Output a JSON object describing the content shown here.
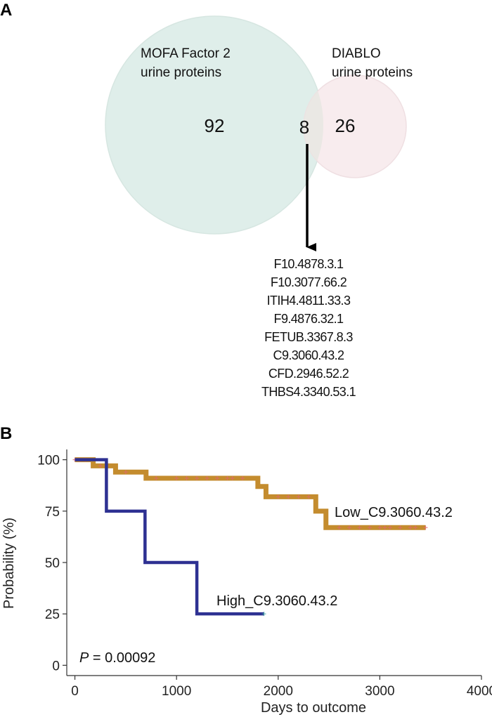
{
  "panel_a": {
    "letter": "A",
    "set1": {
      "label_line1": "MOFA Factor 2",
      "label_line2": "urine proteins",
      "count": "92",
      "color": "#dfeeea"
    },
    "set2": {
      "label_line1": "DIABLO",
      "label_line2": "urine proteins",
      "count": "26",
      "color": "#f8ecee"
    },
    "overlap": {
      "count": "8",
      "color": "#e8e8e2"
    },
    "proteins": [
      "F10.4878.3.1",
      "F10.3077.66.2",
      "ITIH4.4811.33.3",
      "F9.4876.32.1",
      "FETUB.3367.8.3",
      "C9.3060.43.2",
      "CFD.2946.52.2",
      "THBS4.3340.53.1"
    ]
  },
  "panel_b": {
    "letter": "B",
    "p_label_symbol": "P",
    "p_label_value": " = 0.00092"
  },
  "chart_data": {
    "type": "line",
    "subtype": "kaplan-meier step",
    "xlabel": "Days to outcome",
    "ylabel": "Probability (%)",
    "xlim": [
      -80,
      4000
    ],
    "ylim": [
      -5,
      105
    ],
    "xticks": [
      0,
      1000,
      2000,
      3000,
      4000
    ],
    "yticks": [
      0,
      25,
      50,
      75,
      100
    ],
    "grid": false,
    "series": [
      {
        "name": "Low_C9.3060.43.2",
        "color": "#c48c2e",
        "steps": [
          [
            0,
            100
          ],
          [
            180,
            97
          ],
          [
            400,
            94
          ],
          [
            700,
            91
          ],
          [
            1750,
            91
          ],
          [
            1800,
            87
          ],
          [
            1880,
            82
          ],
          [
            2350,
            82
          ],
          [
            2370,
            75
          ],
          [
            2450,
            75
          ],
          [
            2470,
            67
          ],
          [
            3450,
            67
          ]
        ],
        "censored_x": [
          0,
          50,
          100,
          250,
          500,
          800,
          1000,
          1100,
          1200,
          1300,
          1400,
          1500,
          1550,
          1650,
          2000,
          2100,
          2200,
          2300,
          2600,
          2700,
          2800,
          2900,
          3000,
          3050,
          3100,
          3200,
          3300,
          3350,
          3450
        ]
      },
      {
        "name": "High_C9.3060.43.2",
        "color": "#2e3192",
        "steps": [
          [
            0,
            100
          ],
          [
            310,
            75
          ],
          [
            690,
            50
          ],
          [
            1200,
            25
          ],
          [
            1860,
            25
          ]
        ],
        "censored_x": [
          1860
        ]
      }
    ],
    "annotation": "P = 0.00092"
  }
}
